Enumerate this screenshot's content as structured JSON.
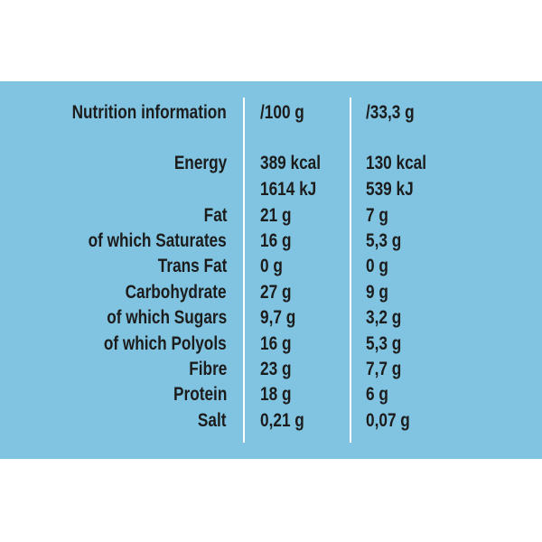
{
  "table": {
    "header": [
      "Nutrition information",
      "/100 g",
      "/33,3 g"
    ],
    "rows": [
      [
        "Energy",
        "389 kcal",
        "130 kcal"
      ],
      [
        null,
        "1614 kJ",
        "539 kJ"
      ],
      [
        "Fat",
        "21 g",
        "7 g"
      ],
      [
        "of which Saturates",
        "16 g",
        "5,3 g"
      ],
      [
        "Trans Fat",
        "0 g",
        "0 g"
      ],
      [
        "Carbohydrate",
        "27 g",
        "9 g"
      ],
      [
        "of which Sugars",
        "9,7 g",
        "3,2 g"
      ],
      [
        "of which Polyols",
        "16 g",
        "5,3 g"
      ],
      [
        "Fibre",
        "23 g",
        "7,7 g"
      ],
      [
        "Protein",
        "18 g",
        "6 g"
      ],
      [
        "Salt",
        "0,21 g",
        "0,07 g"
      ]
    ]
  }
}
